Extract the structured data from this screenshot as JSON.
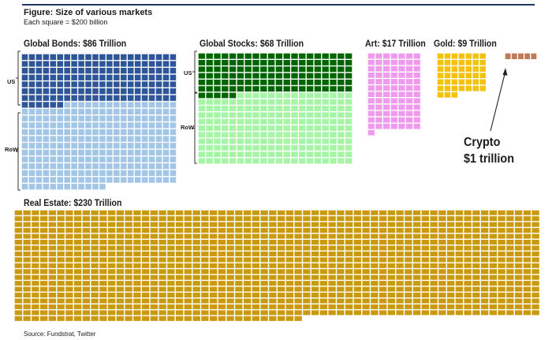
{
  "title": "Figure: Size of various markets",
  "subtitle": "Each square = $200 billion",
  "source": "Source: Fundstrat, Twitter",
  "chart_data": {
    "type": "waffle",
    "unit": "Each square = $200 billion",
    "unit_value_billion": 200,
    "markets": [
      {
        "name": "Global Bonds",
        "label": "Global Bonds: $86 Trillion",
        "value_trillion": 86,
        "segments": [
          {
            "label": "US",
            "squares": 160,
            "color": "#2e5597"
          },
          {
            "label": "RoW",
            "squares": 270,
            "color": "#a3c6e6"
          }
        ]
      },
      {
        "name": "Global Stocks",
        "label": "Global Stocks: $68 Trillion",
        "value_trillion": 68,
        "segments": [
          {
            "label": "US",
            "squares": 125,
            "color": "#006400"
          },
          {
            "label": "RoW",
            "squares": 215,
            "color": "#a6f5a6"
          }
        ]
      },
      {
        "name": "Art",
        "label": "Art: $17 Trillion",
        "value_trillion": 17,
        "segments": [
          {
            "label": "",
            "squares": 85,
            "color": "#ef99ef"
          }
        ]
      },
      {
        "name": "Gold",
        "label": "Gold: $9 Trillion",
        "value_trillion": 9,
        "segments": [
          {
            "label": "",
            "squares": 45,
            "color": "#f2c20c"
          }
        ]
      },
      {
        "name": "Crypto",
        "label": "",
        "value_trillion": 1,
        "segments": [
          {
            "label": "",
            "squares": 5,
            "color": "#c07a55"
          }
        ]
      },
      {
        "name": "Real Estate",
        "label": "Real Estate: $230 Trillion",
        "value_trillion": 230,
        "segments": [
          {
            "label": "",
            "squares": 1150,
            "color": "#c99a10"
          }
        ]
      }
    ],
    "annotations": [
      {
        "target": "Crypto",
        "lines": [
          "Crypto",
          "$1 trillion"
        ]
      }
    ]
  }
}
